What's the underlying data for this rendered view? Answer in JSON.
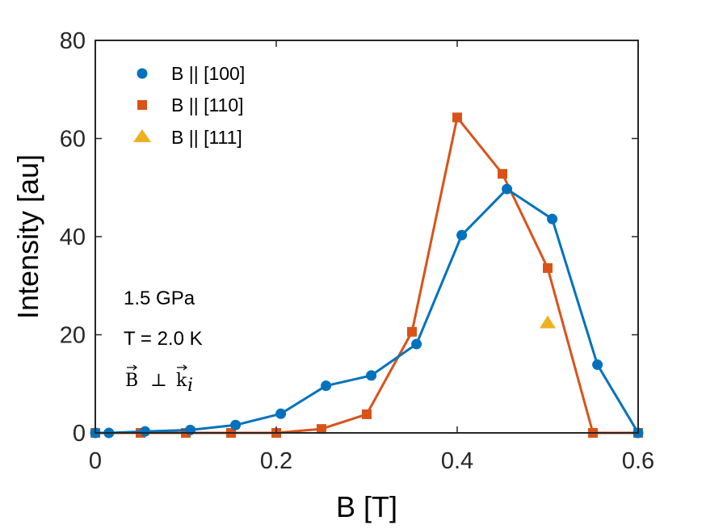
{
  "chart_data": {
    "type": "line",
    "title": "",
    "xlabel": "B [T]",
    "ylabel": "Intensity [au]",
    "xlim": [
      0,
      0.6
    ],
    "ylim": [
      0,
      80
    ],
    "xticks": [
      0,
      0.2,
      0.4,
      0.6
    ],
    "xtick_labels": [
      "0",
      "0.2",
      "0.4",
      "0.6"
    ],
    "yticks": [
      0,
      20,
      40,
      60,
      80
    ],
    "ytick_labels": [
      "0",
      "20",
      "40",
      "60",
      "80"
    ],
    "grid": false,
    "legend_position": "top-left",
    "series": [
      {
        "name": "B || [100]",
        "marker": "circle",
        "color": "#0072BD",
        "line": true,
        "x": [
          0.0,
          0.015,
          0.055,
          0.105,
          0.155,
          0.205,
          0.255,
          0.305,
          0.355,
          0.405,
          0.455,
          0.505,
          0.555,
          0.6
        ],
        "y": [
          0.0,
          0.0,
          0.3,
          0.6,
          1.6,
          3.9,
          9.6,
          11.7,
          18.1,
          40.3,
          49.7,
          43.6,
          13.9,
          0.0
        ]
      },
      {
        "name": "B || [110]",
        "marker": "square",
        "color": "#D95319",
        "line": true,
        "x": [
          0.0,
          0.05,
          0.1,
          0.15,
          0.2,
          0.25,
          0.3,
          0.35,
          0.4,
          0.45,
          0.5,
          0.55,
          0.6
        ],
        "y": [
          0.0,
          0.0,
          0.0,
          0.0,
          0.0,
          0.8,
          3.8,
          20.6,
          64.3,
          52.8,
          33.6,
          0.0,
          0.0
        ]
      },
      {
        "name": "B || [111]",
        "marker": "triangle",
        "color": "#EDB120",
        "line": false,
        "x": [
          0.5
        ],
        "y": [
          22.3
        ]
      }
    ],
    "annotations": [
      "1.5 GPa",
      "T = 2.0 K"
    ],
    "annotation_math": {
      "base": "B",
      "perp": "⊥",
      "k_base": "k",
      "k_sub": "i"
    }
  }
}
